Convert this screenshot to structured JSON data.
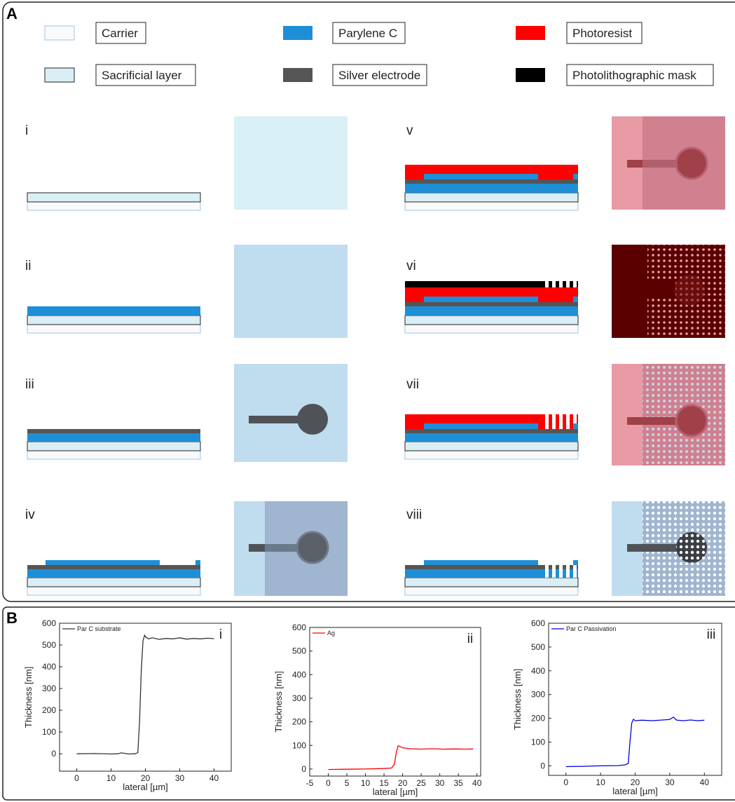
{
  "panel_a": {
    "letter": "A",
    "legend": [
      {
        "label": "Carrier",
        "color": "#fafafa",
        "stroke": "#9fc3e6"
      },
      {
        "label": "Parylene C",
        "color": "#1e8fd6",
        "stroke": "#1e8fd6"
      },
      {
        "label": "Photoresist",
        "color": "#ff0000",
        "stroke": "#ff0000"
      },
      {
        "label": "Sacrificial layer",
        "color": "#d9eff5",
        "stroke": "#222222"
      },
      {
        "label": "Silver electrode",
        "color": "#555555",
        "stroke": "#555555"
      },
      {
        "label": "Photolithographic mask",
        "color": "#000000",
        "stroke": "#000000"
      }
    ],
    "steps": [
      "i",
      "ii",
      "iii",
      "iv",
      "v",
      "vi",
      "vii",
      "viii"
    ]
  },
  "panel_b": {
    "letter": "B",
    "charts": [
      {
        "roman": "i",
        "legend": "Par C substrate",
        "color": "#333333",
        "xlabel": "lateral [µm]",
        "ylabel": "Thickness [nm]",
        "xlim": [
          -5,
          45
        ],
        "ylim": [
          -80,
          600
        ],
        "xticks": [
          0,
          10,
          20,
          30,
          40
        ],
        "yticks": [
          0,
          100,
          200,
          300,
          400,
          500,
          600
        ],
        "x": [
          0,
          5,
          10,
          12,
          13,
          15,
          17,
          17.8,
          18.3,
          18.8,
          19.3,
          19.8,
          20.2,
          21,
          22,
          24,
          26,
          28,
          30,
          32,
          34,
          36,
          38,
          40
        ],
        "y": [
          0,
          1,
          -1,
          0,
          4,
          -1,
          0,
          5,
          150,
          380,
          520,
          545,
          535,
          528,
          533,
          526,
          530,
          528,
          533,
          527,
          530,
          528,
          531,
          529
        ]
      },
      {
        "roman": "ii",
        "legend": "Ag",
        "color": "#ff0000",
        "xlabel": "lateral [µm]",
        "ylabel": "Thickness [nm]",
        "xlim": [
          -5,
          41
        ],
        "ylim": [
          -30,
          600
        ],
        "xticks": [
          -5,
          0,
          5,
          10,
          15,
          20,
          25,
          30,
          35,
          40
        ],
        "yticks": [
          0,
          100,
          200,
          300,
          400,
          500,
          600
        ],
        "x": [
          0,
          5,
          10,
          15,
          17,
          17.8,
          18.3,
          18.8,
          19.3,
          20,
          22,
          25,
          28,
          31,
          34,
          37,
          39
        ],
        "y": [
          -2,
          -1,
          0,
          2,
          4,
          20,
          70,
          98,
          95,
          90,
          86,
          84,
          86,
          84,
          85,
          84,
          85
        ]
      },
      {
        "roman": "iii",
        "legend": "Par C Passivation",
        "color": "#0000dd",
        "xlabel": "lateral [µm]",
        "ylabel": "Thickness [nm]",
        "xlim": [
          -5,
          45
        ],
        "ylim": [
          -40,
          600
        ],
        "xticks": [
          0,
          10,
          20,
          30,
          40
        ],
        "yticks": [
          0,
          100,
          200,
          300,
          400,
          500,
          600
        ],
        "x": [
          0,
          5,
          10,
          15,
          17,
          18,
          18.5,
          19,
          19.5,
          20,
          22,
          25,
          28,
          30,
          31,
          32,
          34,
          36,
          38,
          40
        ],
        "y": [
          -3,
          -2,
          0,
          1,
          4,
          10,
          100,
          180,
          196,
          190,
          192,
          190,
          193,
          195,
          205,
          192,
          190,
          193,
          190,
          192
        ]
      }
    ]
  }
}
